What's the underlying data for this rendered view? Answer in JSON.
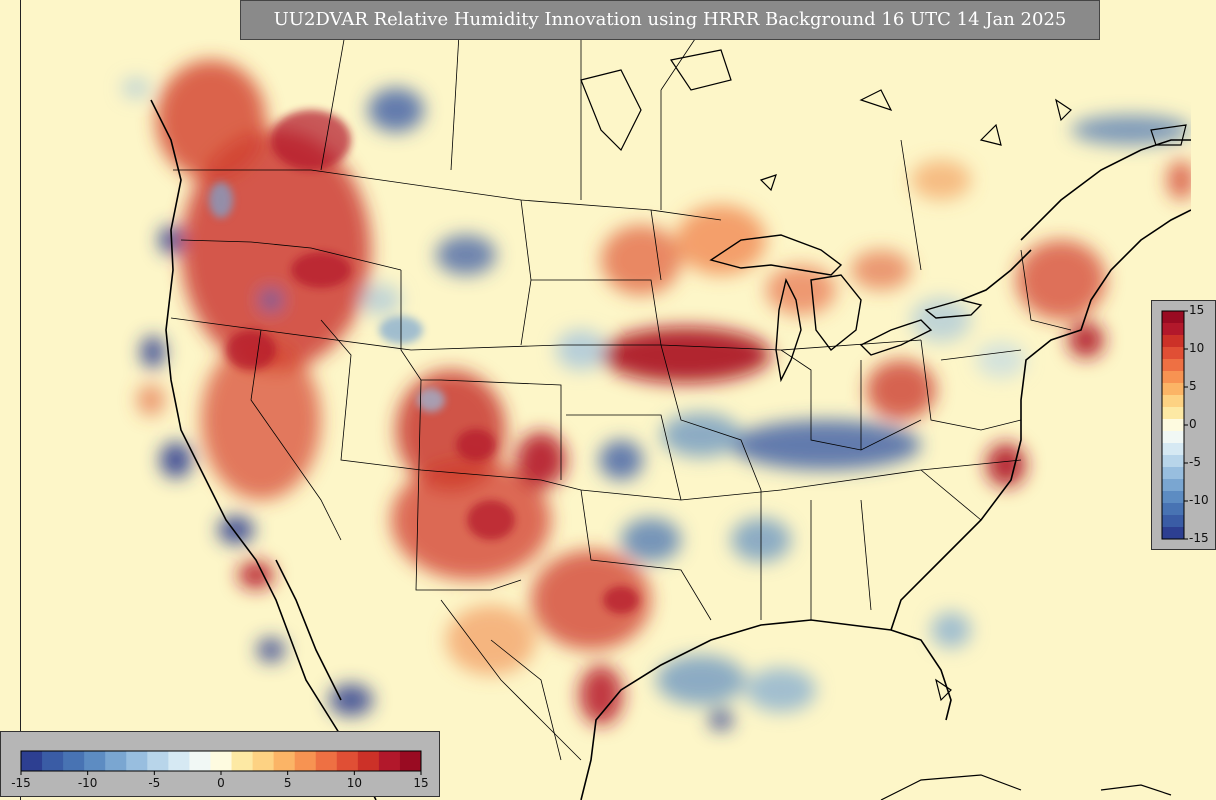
{
  "map": {
    "title": "UU2DVAR Relative Humidity Innovation using HRRR Background 16 UTC 14 Jan 2025"
  },
  "colorbar": {
    "min": -15,
    "max": 15,
    "tick_labels": [
      "-15",
      "-10",
      "-5",
      "0",
      "5",
      "10",
      "15"
    ],
    "vertical_tick_labels": [
      "15",
      "10",
      "5",
      "0",
      "-5",
      "-10",
      "-15"
    ],
    "colors": [
      "#2d3f91",
      "#3a5ca5",
      "#4873b3",
      "#5d8cc2",
      "#7aa6d1",
      "#98bedf",
      "#b8d5ea",
      "#d6e9f3",
      "#f1f8f5",
      "#fefbe0",
      "#fde9a4",
      "#fdd283",
      "#fbb466",
      "#f79352",
      "#ee7043",
      "#e04f35",
      "#cc3128",
      "#b2182b",
      "#990b22"
    ]
  }
}
